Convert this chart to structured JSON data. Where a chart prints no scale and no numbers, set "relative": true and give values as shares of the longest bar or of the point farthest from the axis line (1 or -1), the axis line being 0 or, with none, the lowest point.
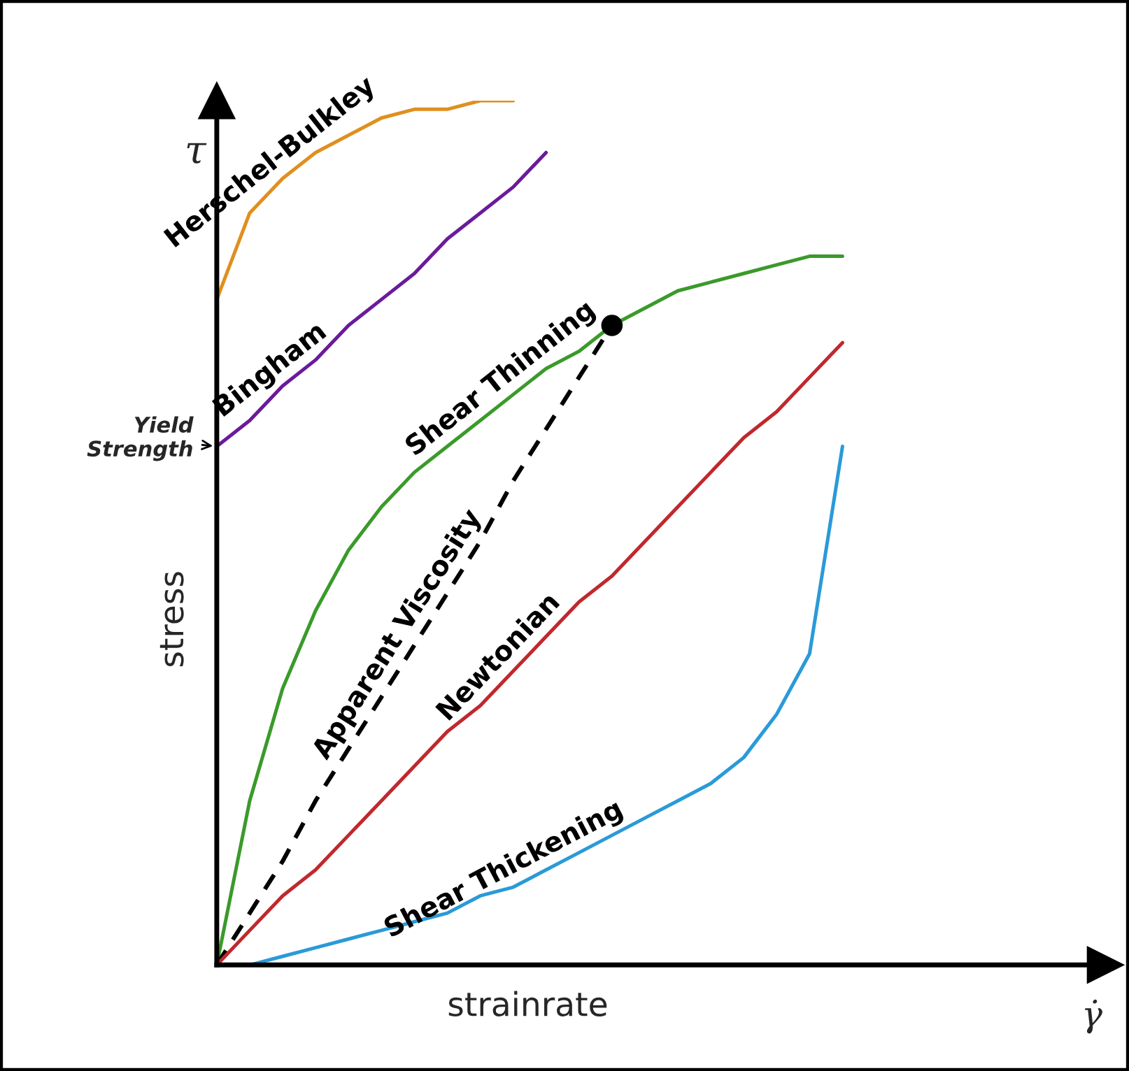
{
  "chart_data": {
    "type": "line",
    "relative": true,
    "xlabel": "strainrate",
    "ylabel": "stress",
    "categories": [
      null,
      null,
      null,
      null,
      null,
      null,
      null,
      null,
      null,
      null,
      null,
      null,
      null,
      null,
      null,
      null,
      null,
      null,
      null,
      null
    ],
    "series": [
      {
        "name": "Herschel-Bulkley",
        "color": "#e08f1f",
        "values": [
          0.77,
          0.87,
          0.91,
          0.94,
          0.96,
          0.98,
          0.99,
          0.99,
          1.0,
          1.0,
          null,
          null,
          null,
          null,
          null,
          null,
          null,
          null,
          null,
          null
        ]
      },
      {
        "name": "Bingham",
        "color": "#6a1b9a",
        "values": [
          0.6,
          0.63,
          0.67,
          0.7,
          0.74,
          0.77,
          0.8,
          0.84,
          0.87,
          0.9,
          0.94,
          null,
          null,
          null,
          null,
          null,
          null,
          null,
          null,
          null
        ]
      },
      {
        "name": "Shear Thinning",
        "color": "#3a9a2a",
        "values": [
          0,
          0.19,
          0.32,
          0.41,
          0.48,
          0.53,
          0.57,
          0.6,
          0.63,
          0.66,
          0.69,
          0.71,
          0.74,
          0.76,
          0.78,
          0.79,
          0.8,
          0.81,
          0.82,
          0.82
        ]
      },
      {
        "name": "Apparent Viscosity",
        "color": "#000000",
        "line_style": "dashed",
        "values": [
          0,
          0.06,
          0.12,
          0.19,
          0.25,
          0.31,
          0.37,
          0.43,
          0.49,
          0.56,
          0.62,
          0.68,
          0.74,
          null,
          null,
          null,
          null,
          null,
          null,
          null
        ]
      },
      {
        "name": "Newtonian",
        "color": "#c0282d",
        "values": [
          0,
          0.04,
          0.08,
          0.11,
          0.15,
          0.19,
          0.23,
          0.27,
          0.3,
          0.34,
          0.38,
          0.42,
          0.45,
          0.49,
          0.53,
          0.57,
          0.61,
          0.64,
          0.68,
          0.72
        ]
      },
      {
        "name": "Shear Thickening",
        "color": "#2a9ad8",
        "values": [
          0,
          0.0,
          0.01,
          0.02,
          0.03,
          0.04,
          0.05,
          0.06,
          0.08,
          0.09,
          0.11,
          0.13,
          0.15,
          0.17,
          0.19,
          0.21,
          0.24,
          0.29,
          0.36,
          0.6
        ]
      }
    ],
    "annotations": [
      "Yield Strength",
      "τ",
      "γ̇"
    ],
    "grid": false,
    "legend": false
  }
}
